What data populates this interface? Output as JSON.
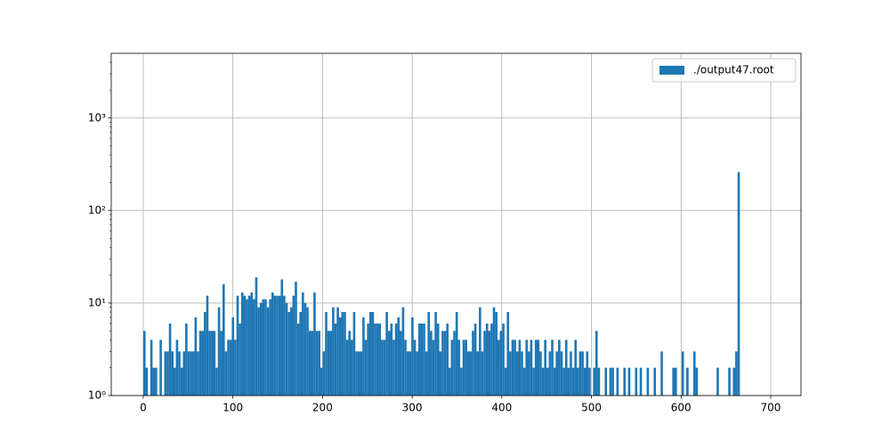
{
  "chart_data": {
    "type": "histogram",
    "log_y": true,
    "grid": true,
    "legend": "upper right",
    "series": [
      {
        "name": "./output47.root",
        "color": "#1f77b4",
        "values": [
          5,
          2,
          0,
          4,
          2,
          2,
          0,
          4,
          0,
          3,
          3,
          6,
          3,
          2,
          4,
          3,
          2,
          3,
          6,
          3,
          3,
          3,
          7,
          3,
          5,
          5,
          8,
          12,
          5,
          5,
          5,
          2,
          9,
          5,
          16,
          3,
          4,
          4,
          7,
          4,
          12,
          6,
          13,
          12,
          11,
          12,
          13,
          11,
          19,
          9,
          10,
          11,
          11,
          9,
          11,
          13,
          12,
          12,
          12,
          18,
          12,
          10,
          8,
          9,
          12,
          17,
          6,
          8,
          13,
          10,
          9,
          5,
          5,
          13,
          5,
          5,
          2,
          3,
          8,
          5,
          5,
          9,
          6,
          9,
          7,
          8,
          8,
          4,
          5,
          4,
          8,
          3,
          3,
          3,
          7,
          4,
          6,
          8,
          8,
          6,
          6,
          6,
          4,
          4,
          8,
          5,
          6,
          4,
          6,
          7,
          5,
          9,
          4,
          3,
          3,
          7,
          4,
          3,
          6,
          6,
          6,
          3,
          8,
          5,
          4,
          8,
          6,
          3,
          5,
          5,
          6,
          2,
          4,
          5,
          8,
          4,
          2,
          4,
          4,
          3,
          3,
          5,
          6,
          3,
          9,
          3,
          5,
          6,
          5,
          6,
          9,
          8,
          4,
          5,
          6,
          2,
          8,
          3,
          4,
          4,
          3,
          4,
          3,
          2,
          4,
          3,
          4,
          2,
          4,
          4,
          3,
          2,
          4,
          2,
          3,
          4,
          2,
          3,
          4,
          3,
          2,
          4,
          2,
          3,
          2,
          4,
          2,
          3,
          3,
          2,
          3,
          2,
          0,
          2,
          5,
          2,
          0,
          0,
          2,
          0,
          2,
          2,
          0,
          2,
          0,
          0,
          2,
          0,
          2,
          0,
          0,
          2,
          0,
          2,
          0,
          0,
          2,
          0,
          0,
          2,
          0,
          0,
          3,
          0,
          0,
          0,
          0,
          2,
          2,
          0,
          0,
          3,
          0,
          2,
          0,
          0,
          3,
          2,
          0,
          0,
          0,
          0,
          0,
          0,
          0,
          0,
          2,
          0,
          0,
          0,
          0,
          2,
          0,
          2,
          3,
          260
        ]
      }
    ],
    "bins": [
      0,
      2.6,
      5.2,
      7.8,
      10.4,
      13,
      15.6,
      18.2,
      20.8,
      23.4,
      26,
      28.6,
      31.2,
      33.8,
      36.4,
      39,
      41.6,
      44.2,
      46.8,
      49.4,
      52,
      54.6,
      57.2,
      59.8,
      62.4,
      65,
      67.6,
      70.2,
      72.8,
      75.4,
      78,
      80.6,
      83.2,
      85.8,
      88.4,
      91,
      93.6,
      96.2,
      98.8,
      101.4,
      104,
      106.6,
      109.2,
      111.8,
      114.4,
      117,
      119.6,
      122.2,
      124.8,
      127.4,
      130,
      132.6,
      135.2,
      137.8,
      140.4,
      143,
      145.6,
      148.2,
      150.8,
      153.4,
      156,
      158.6,
      161.2,
      163.8,
      166.4,
      169,
      171.6,
      174.2,
      176.8,
      179.4,
      182,
      184.6,
      187.2,
      189.8,
      192.4,
      195,
      197.6,
      200.2,
      202.8,
      205.4,
      208,
      210.6,
      213.2,
      215.8,
      218.4,
      221,
      223.6,
      226.2,
      228.8,
      231.4,
      234,
      236.6,
      239.2,
      241.8,
      244.4,
      247,
      249.6,
      252.2,
      254.8,
      257.4,
      260,
      262.6,
      265.2,
      267.8,
      270.4,
      273,
      275.6,
      278.2,
      280.8,
      283.4,
      286,
      288.6,
      291.2,
      293.8,
      296.4,
      299,
      301.6,
      304.2,
      306.8,
      309.4,
      312,
      314.6,
      317.2,
      319.8,
      322.4,
      325,
      327.6,
      330.2,
      332.8,
      335.4,
      338,
      340.6,
      343.2,
      345.8,
      348.4,
      351,
      353.6,
      356.2,
      358.8,
      361.4,
      364,
      366.6,
      369.2,
      371.8,
      374.4,
      377,
      379.6,
      382.2,
      384.8,
      387.4,
      390,
      392.6,
      395.2,
      397.8,
      400.4,
      403,
      405.6,
      408.2,
      410.8,
      413.4,
      416,
      418.6,
      421.2,
      423.8,
      426.4,
      429,
      431.6,
      434.2,
      436.8,
      439.4,
      442,
      444.6,
      447.2,
      449.8,
      452.4,
      455,
      457.6,
      460.2,
      462.8,
      465.4,
      468,
      470.6,
      473.2,
      475.8,
      478.4,
      481,
      483.6,
      486.2,
      488.8,
      491.4,
      494,
      496.6,
      499.2,
      501.8,
      504.4,
      507,
      509.6,
      512.2,
      514.8,
      517.4,
      520,
      522.6,
      525.2,
      527.8,
      530.4,
      533,
      535.6,
      538.2,
      540.8,
      543.4,
      546,
      548.6,
      551.2,
      553.8,
      556.4,
      559,
      561.6,
      564.2,
      566.8,
      569.4,
      572,
      574.6,
      577.2,
      579.8,
      582.4,
      585,
      587.6,
      590.2,
      592.8,
      595.4,
      598,
      600.6,
      603.2,
      605.8,
      608.4,
      611,
      613.6,
      616.2,
      618.8,
      621.4,
      624,
      626.6,
      629.2,
      631.8,
      634.4,
      637,
      639.6,
      642.2,
      644.8,
      647.4,
      650,
      652.6,
      655.2,
      657.8,
      660.4,
      663,
      665.6
    ],
    "xlim": [
      -35.7,
      733.8
    ],
    "xticks": [
      0,
      100,
      200,
      300,
      400,
      500,
      600,
      700
    ],
    "ylim": [
      1,
      5000
    ],
    "yticks": [
      {
        "value": 1,
        "label": "10⁰"
      },
      {
        "value": 10,
        "label": "10¹"
      },
      {
        "value": 100,
        "label": "10²"
      },
      {
        "value": 1000,
        "label": "10³"
      }
    ]
  }
}
